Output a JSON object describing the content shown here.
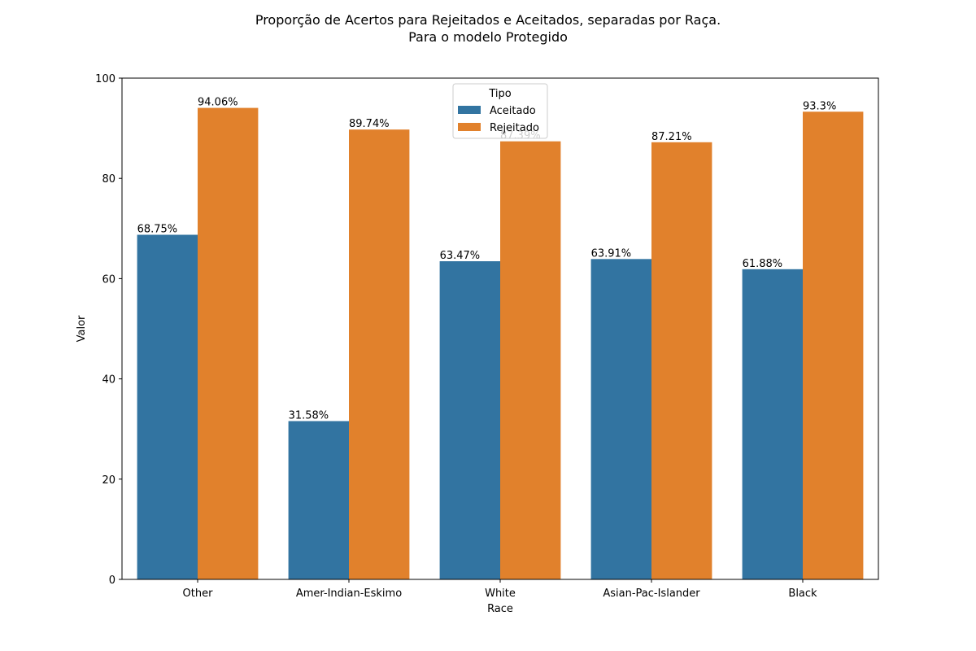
{
  "chart_data": {
    "type": "bar",
    "title": "Proporção de Acertos para Rejeitados e Aceitados, separadas por Raça.",
    "subtitle": "Para o modelo Protegido",
    "xlabel": "Race",
    "ylabel": "Valor",
    "ylim": [
      0,
      100
    ],
    "yticks": [
      "0",
      "20",
      "40",
      "60",
      "80",
      "100"
    ],
    "categories": [
      "Other",
      "Amer-Indian-Eskimo",
      "White",
      "Asian-Pac-Islander",
      "Black"
    ],
    "series": [
      {
        "name": "Aceitado",
        "color": "#3274a1",
        "values": [
          68.75,
          31.58,
          63.47,
          63.91,
          61.88
        ],
        "labels": [
          "68.75%",
          "31.58%",
          "63.47%",
          "63.91%",
          "61.88%"
        ]
      },
      {
        "name": "Rejeitado",
        "color": "#e1812c",
        "values": [
          94.06,
          89.74,
          87.39,
          87.21,
          93.3
        ],
        "labels": [
          "94.06%",
          "89.74%",
          "87.39%",
          "87.21%",
          "93.3%"
        ]
      }
    ],
    "legend": {
      "title": "Tipo",
      "placement": "top-center"
    },
    "grid": false
  }
}
